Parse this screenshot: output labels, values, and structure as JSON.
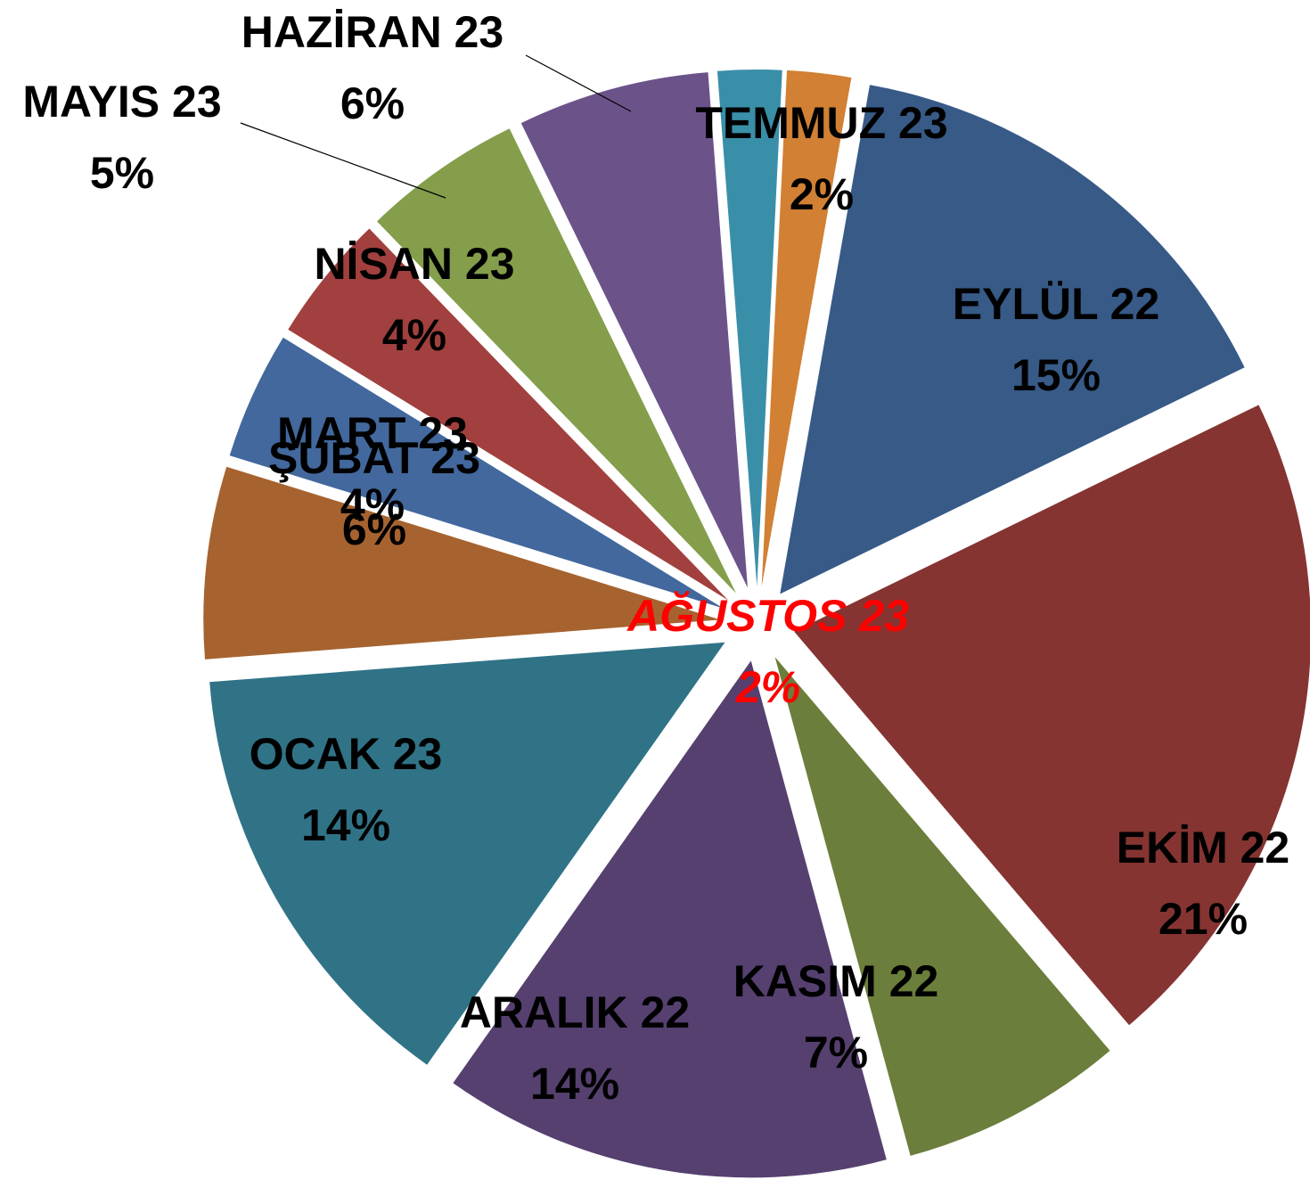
{
  "chart_data": {
    "type": "pie",
    "categories": [
      "EYLÜL 22",
      "EKİM 22",
      "KASIM 22",
      "ARALIK 22",
      "OCAK 23",
      "ŞUBAT 23",
      "MART 23",
      "NİSAN 23",
      "MAYIS 23",
      "HAZİRAN 23",
      "TEMMUZ 23",
      "AĞUSTOS 23"
    ],
    "values": [
      15,
      21,
      7,
      14,
      14,
      6,
      4,
      4,
      5,
      6,
      2,
      2
    ],
    "value_labels": [
      "15%",
      "21%",
      "7%",
      "14%",
      "14%",
      "6%",
      "4%",
      "4%",
      "5%",
      "6%",
      "2%",
      "2%"
    ],
    "colors": [
      "#375a87",
      "#853432",
      "#6b7e3b",
      "#55406f",
      "#307387",
      "#a6632f",
      "#42689d",
      "#a1403e",
      "#849e4b",
      "#6b538a",
      "#3a8fa8",
      "#d18034"
    ]
  }
}
